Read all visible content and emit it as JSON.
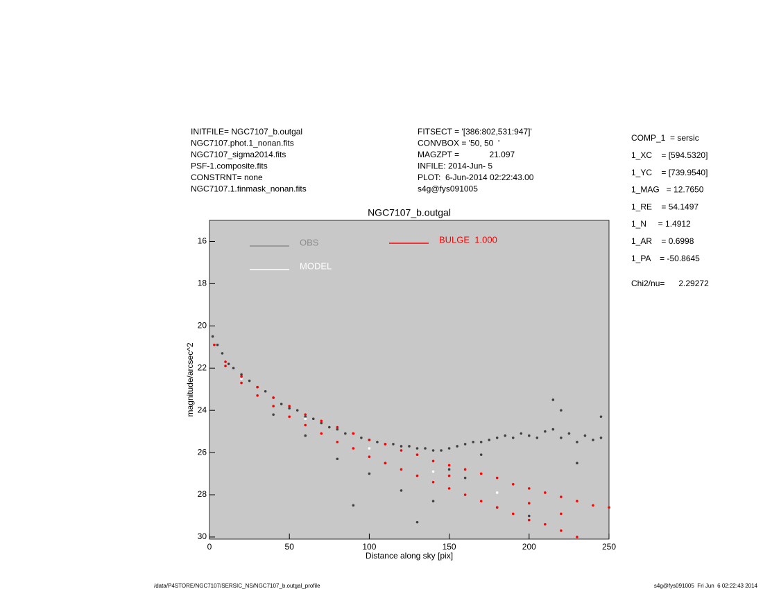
{
  "header": {
    "left": [
      "INITFILE= NGC7107_b.outgal",
      "NGC7107.phot.1_nonan.fits",
      "NGC7107_sigma2014.fits",
      "PSF-1.composite.fits",
      "CONSTRNT= none",
      "NGC7107.1.finmask_nonan.fits"
    ],
    "middle": [
      "FITSECT = '[386:802,531:947]'",
      "CONVBOX = '50, 50  '",
      "MAGZPT =             21.097",
      "INFILE: 2014-Jun- 5",
      "PLOT:  6-Jun-2014 02:22:43.00",
      "s4g@fys091005"
    ]
  },
  "params": [
    "COMP_1  = sersic",
    "1_XC    = [594.5320]",
    "1_YC    = [739.9540]",
    "1_MAG   = 12.7650",
    "1_RE    = 54.1497",
    "1_N     = 1.4912",
    "1_AR    = 0.6998",
    "1_PA    = -50.8645"
  ],
  "chi2": "Chi2/nu=      2.29272",
  "footer": {
    "left": "/data/P4STORE/NGC7107/SERSIC_NS/NGC7107_b.outgal_profile",
    "right": "s4g@fys091005  Fri Jun  6 02:22:43 2014"
  },
  "chart_data": {
    "type": "scatter",
    "title": "NGC7107_b.outgal",
    "xlabel": "Distance along sky [pix]",
    "ylabel": "magnitude/arcsec^2",
    "background": "#c8c8c8",
    "reverse_y": true,
    "xlim": [
      0,
      250
    ],
    "xticks": [
      0,
      50,
      100,
      150,
      200,
      250
    ],
    "ylim": [
      15,
      30.1
    ],
    "yticks": [
      16,
      18,
      20,
      22,
      24,
      26,
      28,
      30
    ],
    "series": [
      {
        "name": "OBS",
        "color": "#404040",
        "legend_color": "#8c8c8c",
        "x": [
          2,
          5,
          8,
          12,
          15,
          20,
          25,
          30,
          35,
          40,
          45,
          50,
          55,
          60,
          65,
          70,
          75,
          80,
          85,
          90,
          95,
          100,
          105,
          110,
          115,
          120,
          125,
          130,
          135,
          140,
          145,
          150,
          155,
          160,
          165,
          170,
          175,
          180,
          185,
          190,
          195,
          200,
          205,
          210,
          215,
          220,
          225,
          230,
          235,
          240,
          245,
          40,
          60,
          80,
          100,
          120,
          140,
          160,
          180,
          200,
          90,
          130,
          110,
          150,
          170,
          220,
          215,
          230,
          245
        ],
        "values": [
          20.5,
          20.9,
          21.3,
          21.8,
          22.0,
          22.3,
          22.6,
          22.9,
          23.1,
          23.4,
          23.7,
          23.9,
          24.0,
          24.3,
          24.4,
          24.6,
          24.8,
          24.9,
          25.1,
          25.1,
          25.3,
          25.4,
          25.5,
          25.6,
          25.6,
          25.7,
          25.7,
          25.8,
          25.8,
          25.9,
          25.9,
          25.8,
          25.7,
          25.6,
          25.5,
          25.5,
          25.4,
          25.3,
          25.2,
          25.3,
          25.1,
          25.2,
          25.3,
          25.0,
          24.9,
          25.3,
          25.1,
          25.5,
          25.2,
          25.4,
          25.3,
          24.2,
          25.2,
          26.3,
          27.0,
          27.8,
          28.3,
          27.2,
          28.6,
          29.0,
          28.5,
          29.3,
          26.5,
          26.8,
          26.1,
          24.0,
          23.5,
          26.5,
          24.3
        ]
      },
      {
        "name": "MODEL",
        "color": "#ffffff",
        "x": [
          20,
          60,
          100,
          140,
          180,
          220
        ],
        "values": [
          22.5,
          24.4,
          25.8,
          26.9,
          27.9,
          28.9
        ]
      },
      {
        "name": "BULGE  1.000",
        "color": "#ff0000",
        "x": [
          3,
          10,
          20,
          30,
          40,
          50,
          60,
          70,
          80,
          90,
          100,
          110,
          120,
          130,
          140,
          150,
          160,
          170,
          180,
          190,
          200,
          210,
          220,
          230,
          240,
          250,
          10,
          20,
          30,
          40,
          50,
          60,
          70,
          80,
          90,
          100,
          110,
          120,
          130,
          140,
          150,
          160,
          170,
          180,
          190,
          200,
          210,
          220,
          230,
          150,
          200,
          220
        ],
        "values": [
          20.9,
          21.7,
          22.4,
          22.9,
          23.4,
          23.8,
          24.2,
          24.5,
          24.8,
          25.1,
          25.4,
          25.6,
          25.9,
          26.1,
          26.4,
          26.6,
          26.8,
          27.0,
          27.2,
          27.5,
          27.7,
          27.9,
          28.1,
          28.3,
          28.5,
          28.6,
          21.9,
          22.7,
          23.3,
          23.8,
          24.3,
          24.7,
          25.1,
          25.5,
          25.8,
          26.2,
          26.5,
          26.8,
          27.1,
          27.4,
          27.7,
          28.0,
          28.3,
          28.6,
          28.9,
          29.2,
          29.4,
          29.7,
          30.0,
          27.1,
          28.4,
          28.9
        ]
      }
    ]
  }
}
